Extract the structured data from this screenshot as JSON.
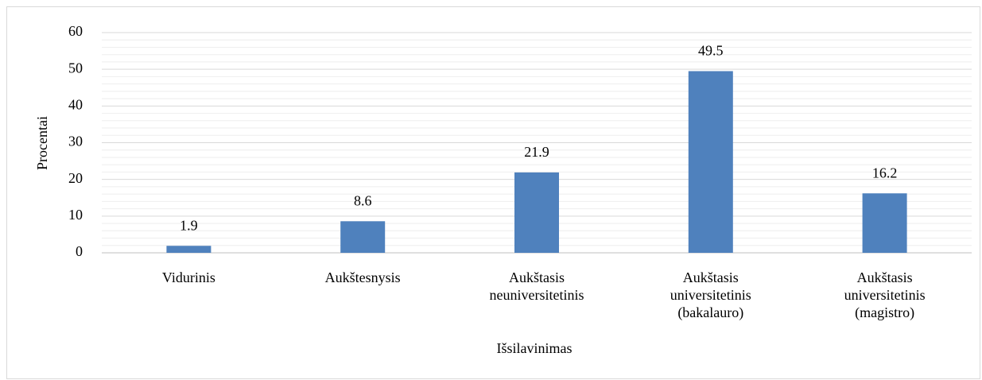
{
  "chart_data": {
    "type": "bar",
    "x_label": "Išsilavinimas",
    "y_label": "Procentai",
    "categories": [
      "Vidurinis",
      "Aukštesnysis",
      "Aukštasis neuniversitetinis",
      "Aukštasis universitetinis (bakalauro)",
      "Aukštasis universitetinis (magistro)"
    ],
    "values": [
      1.9,
      8.6,
      21.9,
      49.5,
      16.2
    ],
    "color": "#4f81bd",
    "ylim": [
      0,
      60
    ],
    "yticks": [
      0,
      10,
      20,
      30,
      40,
      50,
      60
    ],
    "minor_yticks": [
      2,
      4,
      6,
      8,
      12,
      14,
      16,
      18,
      22,
      24,
      26,
      28,
      32,
      34,
      36,
      38,
      42,
      44,
      46,
      48,
      52,
      54,
      56,
      58
    ],
    "grid": true,
    "data_labels": true
  }
}
